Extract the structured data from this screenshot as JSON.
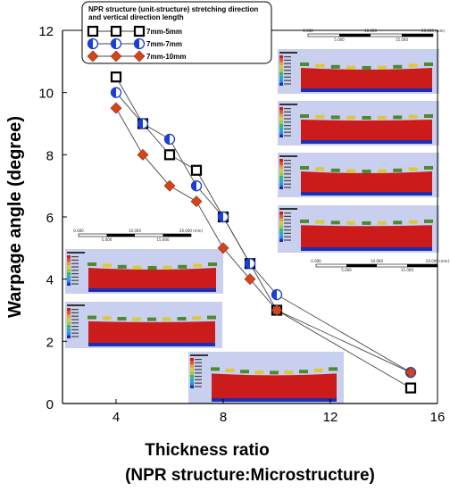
{
  "chart_data": {
    "type": "scatter",
    "xlabel": "Thickness ratio",
    "xlabel_line2": "(NPR structure:Microstructure)",
    "ylabel": "Warpage angle (degree)",
    "xlim": [
      2,
      16
    ],
    "ylim": [
      0,
      12
    ],
    "xticks": [
      "4",
      "8",
      "12",
      "16"
    ],
    "yticks": [
      "0",
      "2",
      "4",
      "6",
      "8",
      "10",
      "12"
    ],
    "grid": false,
    "legend_title": "NPR structure (unit-structure) stretching direction and vertical direction length",
    "legend_position": "top-left",
    "series": [
      {
        "name": "7mm-5mm",
        "marker": "square-open",
        "color": "#000000",
        "x": [
          4,
          5,
          6,
          7,
          8,
          9,
          10,
          15
        ],
        "y": [
          10.5,
          9.0,
          8.0,
          7.5,
          6.0,
          4.5,
          3.0,
          0.5
        ]
      },
      {
        "name": "7mm-7mm",
        "marker": "circle-half",
        "color": "#1a3fd1",
        "x": [
          4,
          5,
          6,
          7,
          8,
          9,
          10,
          15
        ],
        "y": [
          10.0,
          9.0,
          8.5,
          7.0,
          6.0,
          4.5,
          3.5,
          1.0
        ]
      },
      {
        "name": "7mm-10mm",
        "marker": "diamond",
        "color": "#d4441a",
        "x": [
          4,
          5,
          6,
          7,
          8,
          9,
          10,
          15
        ],
        "y": [
          9.5,
          8.0,
          7.0,
          6.5,
          5.0,
          4.0,
          3.0,
          1.0
        ]
      }
    ],
    "scale_bar_labels": [
      "0.000",
      "10.000",
      "20.000 (mm)",
      "5.000",
      "15.000"
    ]
  },
  "colors": {
    "sim_background": "#c9cfee",
    "sim_body": "#cc1b1b",
    "sim_base": "#1d2fb0",
    "sim_top": "#d9c93a",
    "sim_edge": "#4c8a2a"
  }
}
